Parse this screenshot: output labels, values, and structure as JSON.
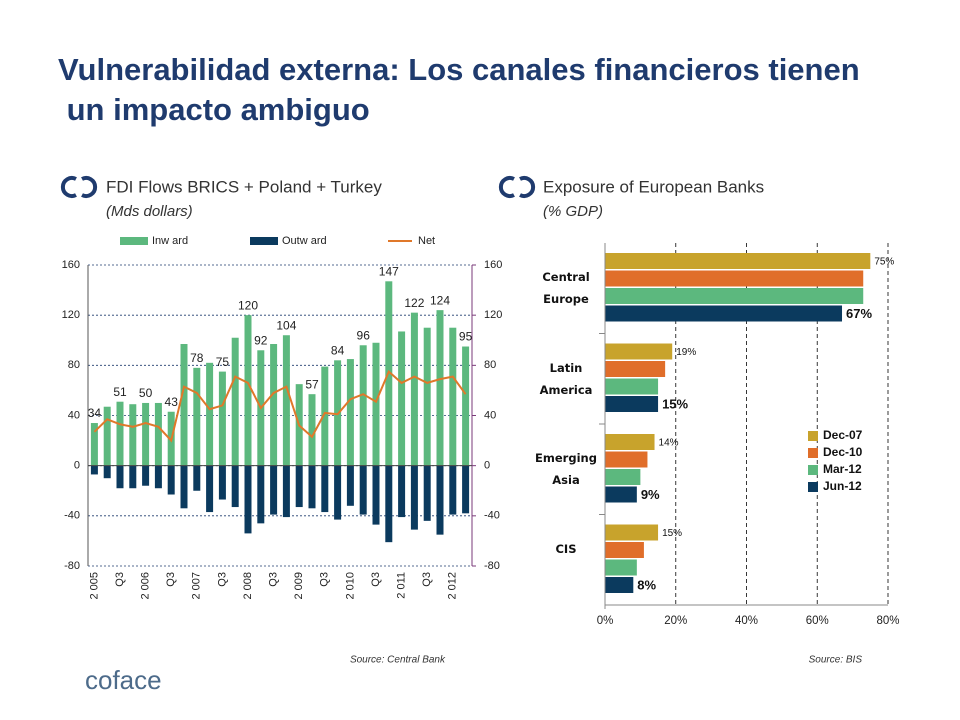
{
  "slide": {
    "title": "Vulnerabilidad externa: Los canales financieros tienen un impacto ambiguo",
    "logo": "coface"
  },
  "chart_data": [
    {
      "type": "bar",
      "title": "FDI Flows BRICS + Poland + Turkey",
      "subtitle": "(Mds dollars)",
      "source": "Source: Central Bank",
      "categories": [
        "2 005",
        null,
        "Q3",
        null,
        "2 006",
        null,
        "Q3",
        null,
        "2 007",
        null,
        "Q3",
        null,
        "2 008",
        null,
        "Q3",
        null,
        "2 009",
        null,
        "Q3",
        null,
        "2 010",
        null,
        "Q3",
        null,
        "2 011",
        null,
        "Q3",
        null,
        "2 012",
        null
      ],
      "series": [
        {
          "name": "Inw ard",
          "type": "bar",
          "color": "#5cb87e",
          "values": [
            34,
            47,
            51,
            49,
            50,
            50,
            43,
            97,
            78,
            82,
            75,
            102,
            120,
            92,
            97,
            104,
            65,
            57,
            79,
            84,
            85,
            96,
            98,
            147,
            107,
            122,
            110,
            124,
            110,
            95
          ],
          "value_labels": [
            "34",
            null,
            "51",
            null,
            "50",
            null,
            "43",
            null,
            "78",
            null,
            "75",
            null,
            "120",
            "92",
            null,
            "104",
            null,
            "57",
            null,
            "84",
            null,
            "96",
            null,
            "147",
            null,
            "122",
            null,
            "124",
            null,
            "95"
          ]
        },
        {
          "name": "Outw ard",
          "type": "bar",
          "color": "#0b3a5e",
          "values": [
            -7,
            -10,
            -18,
            -18,
            -16,
            -18,
            -23,
            -34,
            -20,
            -37,
            -27,
            -33,
            -54,
            -46,
            -39,
            -41,
            -33,
            -34,
            -37,
            -43,
            -32,
            -39,
            -47,
            -61,
            -41,
            -51,
            -44,
            -55,
            -39,
            -38
          ]
        },
        {
          "name": "Net",
          "type": "line",
          "color": "#e0782a",
          "values": [
            27,
            37,
            33,
            31,
            34,
            31,
            20,
            63,
            58,
            45,
            48,
            71,
            66,
            46,
            58,
            63,
            32,
            23,
            42,
            41,
            53,
            57,
            51,
            75,
            66,
            71,
            66,
            69,
            71,
            57
          ]
        }
      ],
      "ylim": [
        -80,
        160
      ],
      "yticks": [
        -80,
        -40,
        0,
        40,
        80,
        120,
        160
      ],
      "y2lim": [
        -80,
        160
      ],
      "y2ticks": [
        -80,
        -40,
        0,
        40,
        80,
        120,
        160
      ],
      "grid": true,
      "legend": "top"
    },
    {
      "type": "barh",
      "title": "Exposure of European Banks",
      "subtitle": "(% GDP)",
      "source": "Source: BIS",
      "categories": [
        "Central Europe",
        "Latin America",
        "Emerging Asia",
        "CIS"
      ],
      "series": [
        {
          "name": "Dec-07",
          "color": "#c8a32c",
          "values": [
            75,
            19,
            14,
            15
          ],
          "value_labels": [
            "75%",
            "19%",
            "14%",
            "15%"
          ]
        },
        {
          "name": "Dec-10",
          "color": "#e06e2a",
          "values": [
            73,
            17,
            12,
            11
          ]
        },
        {
          "name": "Mar-12",
          "color": "#5cb87e",
          "values": [
            73,
            15,
            10,
            9
          ]
        },
        {
          "name": "Jun-12",
          "color": "#0b3a5e",
          "values": [
            67,
            15,
            9,
            8
          ],
          "value_labels": [
            "67%",
            "15%",
            "9%",
            "8%"
          ]
        }
      ],
      "xlim": [
        0,
        80
      ],
      "xticks": [
        {
          "value": 0,
          "label": "0%"
        },
        {
          "value": 20,
          "label": "20%"
        },
        {
          "value": 40,
          "label": "40%"
        },
        {
          "value": 60,
          "label": "60%"
        },
        {
          "value": 80,
          "label": "80%"
        }
      ],
      "grid": true,
      "legend": "center right"
    }
  ]
}
